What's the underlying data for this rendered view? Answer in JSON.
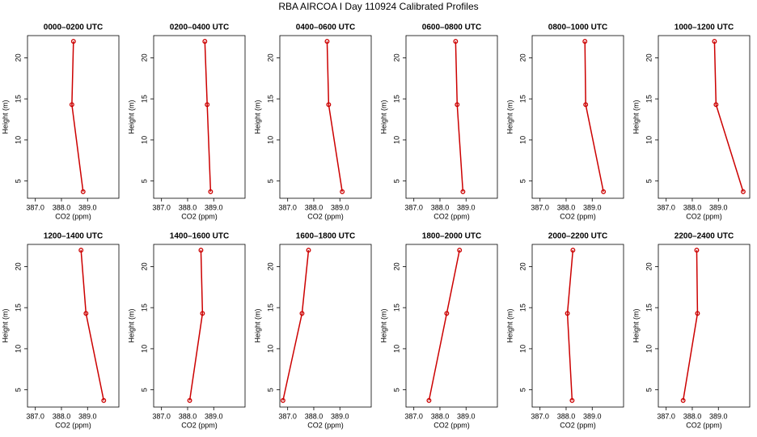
{
  "title": "RBA AIRCOA I  Day 110924  Calibrated Profiles",
  "chart_data": [
    {
      "type": "line",
      "title": "0000–0200 UTC",
      "x_label": "CO2 (ppm)",
      "y_label": "Height (m)",
      "x": [
        388.83,
        388.4,
        388.46
      ],
      "values": [
        3.7,
        14.3,
        22.0
      ],
      "color": "#cc0000",
      "xlim": [
        386.7,
        390.2
      ],
      "ylim": [
        2.9,
        22.7
      ],
      "xticks": [
        {
          "value": 387,
          "label": "387.0"
        },
        {
          "value": 388,
          "label": "388.0"
        },
        {
          "value": 389,
          "label": "389.0"
        }
      ],
      "yticks": [
        5,
        10,
        15,
        20
      ]
    },
    {
      "type": "line",
      "title": "0200–0400 UTC",
      "x_label": "CO2 (ppm)",
      "y_label": "Height (m)",
      "x": [
        388.88,
        388.75,
        388.66
      ],
      "values": [
        3.7,
        14.3,
        22.0
      ],
      "color": "#cc0000",
      "xlim": [
        386.7,
        390.2
      ],
      "ylim": [
        2.9,
        22.7
      ],
      "xticks": [
        {
          "value": 387,
          "label": "387.0"
        },
        {
          "value": 388,
          "label": "388.0"
        },
        {
          "value": 389,
          "label": "389.0"
        }
      ],
      "yticks": [
        5,
        10,
        15,
        20
      ]
    },
    {
      "type": "line",
      "title": "0400–0600 UTC",
      "x_label": "CO2 (ppm)",
      "y_label": "Height (m)",
      "x": [
        389.09,
        388.57,
        388.51
      ],
      "values": [
        3.7,
        14.3,
        22.0
      ],
      "color": "#cc0000",
      "xlim": [
        386.7,
        390.2
      ],
      "ylim": [
        2.9,
        22.7
      ],
      "xticks": [
        {
          "value": 387,
          "label": "387.0"
        },
        {
          "value": 388,
          "label": "388.0"
        },
        {
          "value": 389,
          "label": "389.0"
        }
      ],
      "yticks": [
        5,
        10,
        15,
        20
      ]
    },
    {
      "type": "line",
      "title": "0600–0800 UTC",
      "x_label": "CO2 (ppm)",
      "y_label": "Height (m)",
      "x": [
        388.88,
        388.66,
        388.6
      ],
      "values": [
        3.7,
        14.3,
        22.0
      ],
      "color": "#cc0000",
      "xlim": [
        386.7,
        390.2
      ],
      "ylim": [
        2.9,
        22.7
      ],
      "xticks": [
        {
          "value": 387,
          "label": "387.0"
        },
        {
          "value": 388,
          "label": "388.0"
        },
        {
          "value": 389,
          "label": "389.0"
        }
      ],
      "yticks": [
        5,
        10,
        15,
        20
      ]
    },
    {
      "type": "line",
      "title": "0800–1000 UTC",
      "x_label": "CO2 (ppm)",
      "y_label": "Height (m)",
      "x": [
        389.43,
        388.75,
        388.72
      ],
      "values": [
        3.7,
        14.3,
        22.0
      ],
      "color": "#cc0000",
      "xlim": [
        386.7,
        390.2
      ],
      "ylim": [
        2.9,
        22.7
      ],
      "xticks": [
        {
          "value": 387,
          "label": "387.0"
        },
        {
          "value": 388,
          "label": "388.0"
        },
        {
          "value": 389,
          "label": "389.0"
        }
      ],
      "yticks": [
        5,
        10,
        15,
        20
      ]
    },
    {
      "type": "line",
      "title": "1000–1200 UTC",
      "x_label": "CO2 (ppm)",
      "y_label": "Height (m)",
      "x": [
        389.95,
        388.91,
        388.85
      ],
      "values": [
        3.7,
        14.3,
        22.0
      ],
      "color": "#cc0000",
      "xlim": [
        386.7,
        390.2
      ],
      "ylim": [
        2.9,
        22.7
      ],
      "xticks": [
        {
          "value": 387,
          "label": "387.0"
        },
        {
          "value": 388,
          "label": "388.0"
        },
        {
          "value": 389,
          "label": "389.0"
        }
      ],
      "yticks": [
        5,
        10,
        15,
        20
      ]
    },
    {
      "type": "line",
      "title": "1200–1400 UTC",
      "x_label": "CO2 (ppm)",
      "y_label": "Height (m)",
      "x": [
        389.62,
        388.94,
        388.75
      ],
      "values": [
        3.7,
        14.3,
        22.0
      ],
      "color": "#cc0000",
      "xlim": [
        386.7,
        390.2
      ],
      "ylim": [
        2.9,
        22.7
      ],
      "xticks": [
        {
          "value": 387,
          "label": "387.0"
        },
        {
          "value": 388,
          "label": "388.0"
        },
        {
          "value": 389,
          "label": "389.0"
        }
      ],
      "yticks": [
        5,
        10,
        15,
        20
      ]
    },
    {
      "type": "line",
      "title": "1400–1600 UTC",
      "x_label": "CO2 (ppm)",
      "y_label": "Height (m)",
      "x": [
        388.08,
        388.57,
        388.51
      ],
      "values": [
        3.7,
        14.3,
        22.0
      ],
      "color": "#cc0000",
      "xlim": [
        386.7,
        390.2
      ],
      "ylim": [
        2.9,
        22.7
      ],
      "xticks": [
        {
          "value": 387,
          "label": "387.0"
        },
        {
          "value": 388,
          "label": "388.0"
        },
        {
          "value": 389,
          "label": "389.0"
        }
      ],
      "yticks": [
        5,
        10,
        15,
        20
      ]
    },
    {
      "type": "line",
      "title": "1600–1800 UTC",
      "x_label": "CO2 (ppm)",
      "y_label": "Height (m)",
      "x": [
        386.82,
        387.55,
        387.8
      ],
      "values": [
        3.7,
        14.3,
        22.0
      ],
      "color": "#cc0000",
      "xlim": [
        386.7,
        390.2
      ],
      "ylim": [
        2.9,
        22.7
      ],
      "xticks": [
        {
          "value": 387,
          "label": "387.0"
        },
        {
          "value": 388,
          "label": "388.0"
        },
        {
          "value": 389,
          "label": "389.0"
        }
      ],
      "yticks": [
        5,
        10,
        15,
        20
      ]
    },
    {
      "type": "line",
      "title": "1800–2000 UTC",
      "x_label": "CO2 (ppm)",
      "y_label": "Height (m)",
      "x": [
        387.58,
        388.26,
        388.75
      ],
      "values": [
        3.7,
        14.3,
        22.0
      ],
      "color": "#cc0000",
      "xlim": [
        386.7,
        390.2
      ],
      "ylim": [
        2.9,
        22.7
      ],
      "xticks": [
        {
          "value": 387,
          "label": "387.0"
        },
        {
          "value": 388,
          "label": "388.0"
        },
        {
          "value": 389,
          "label": "389.0"
        }
      ],
      "yticks": [
        5,
        10,
        15,
        20
      ]
    },
    {
      "type": "line",
      "title": "2000–2200 UTC",
      "x_label": "CO2 (ppm)",
      "y_label": "Height (m)",
      "x": [
        388.23,
        388.05,
        388.26
      ],
      "values": [
        3.7,
        14.3,
        22.0
      ],
      "color": "#cc0000",
      "xlim": [
        386.7,
        390.2
      ],
      "ylim": [
        2.9,
        22.7
      ],
      "xticks": [
        {
          "value": 387,
          "label": "387.0"
        },
        {
          "value": 388,
          "label": "388.0"
        },
        {
          "value": 389,
          "label": "389.0"
        }
      ],
      "yticks": [
        5,
        10,
        15,
        20
      ]
    },
    {
      "type": "line",
      "title": "2200–2400 UTC",
      "x_label": "CO2 (ppm)",
      "y_label": "Height (m)",
      "x": [
        387.65,
        388.2,
        388.17
      ],
      "values": [
        3.7,
        14.3,
        22.0
      ],
      "color": "#cc0000",
      "xlim": [
        386.7,
        390.2
      ],
      "ylim": [
        2.9,
        22.7
      ],
      "xticks": [
        {
          "value": 387,
          "label": "387.0"
        },
        {
          "value": 388,
          "label": "388.0"
        },
        {
          "value": 389,
          "label": "389.0"
        }
      ],
      "yticks": [
        5,
        10,
        15,
        20
      ]
    }
  ]
}
